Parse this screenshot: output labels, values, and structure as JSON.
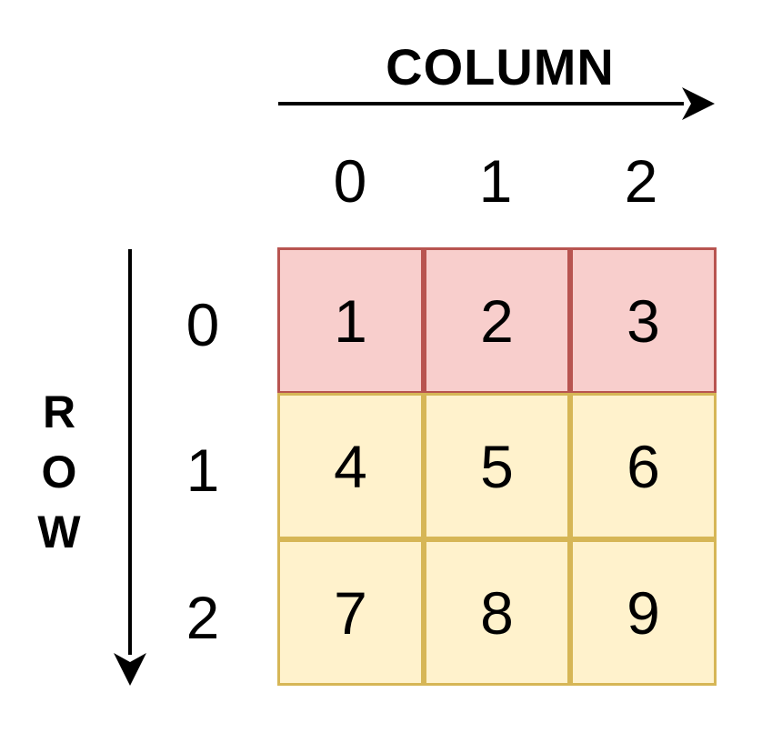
{
  "column_title": "COLUMN",
  "row_title": [
    "R",
    "O",
    "W"
  ],
  "column_indices": [
    "0",
    "1",
    "2"
  ],
  "row_indices": [
    "0",
    "1",
    "2"
  ],
  "matrix": [
    [
      "1",
      "2",
      "3"
    ],
    [
      "4",
      "5",
      "6"
    ],
    [
      "7",
      "8",
      "9"
    ]
  ],
  "highlighted_row": 0,
  "colors": {
    "highlight_fill": "#f8cecc",
    "highlight_border": "#b85450",
    "cell_fill": "#fff2cc",
    "cell_border": "#d6b656"
  }
}
